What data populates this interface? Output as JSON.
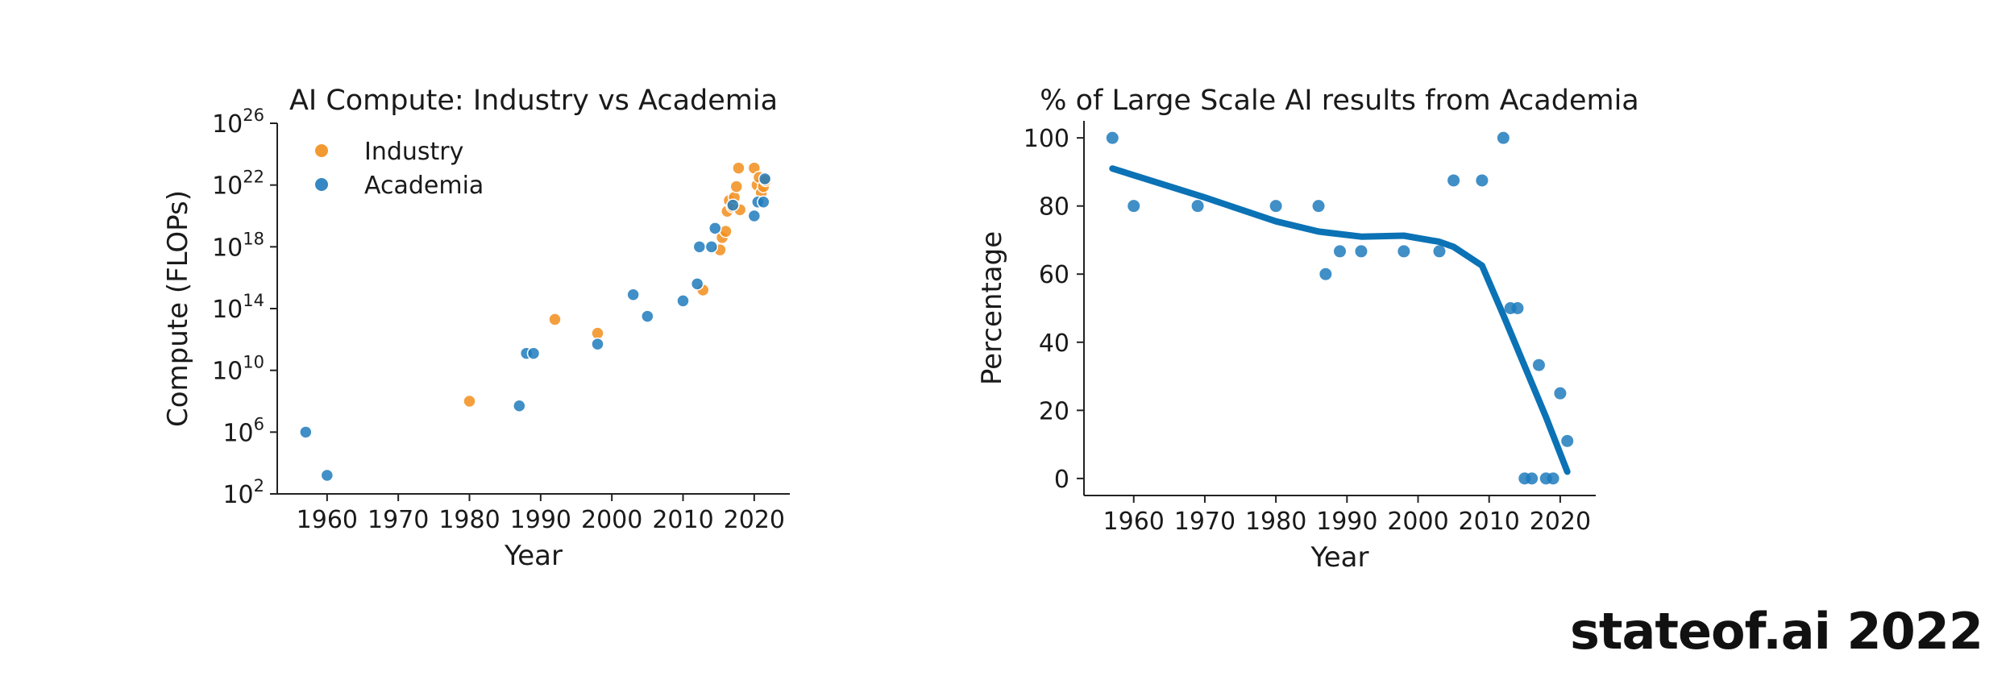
{
  "watermark": "stateof.ai 2022",
  "colors": {
    "industry": "#f28e1c",
    "academia": "#1f7bbd",
    "line": "#0b72b5",
    "text": "#1a1a1a"
  },
  "chart_data": [
    {
      "type": "scatter",
      "title": "AI Compute: Industry vs Academia",
      "xlabel": "Year",
      "ylabel": "Compute (FLOPs)",
      "xlim": [
        1953,
        2025
      ],
      "ylim": [
        2,
        26
      ],
      "yscale": "log10",
      "xticks": [
        1960,
        1970,
        1980,
        1990,
        2000,
        2010,
        2020
      ],
      "xtick_labels": [
        "1960",
        "1970",
        "1980",
        "1990",
        "2000",
        "2010",
        "2020"
      ],
      "yticks": [
        2,
        6,
        10,
        14,
        18,
        22,
        26
      ],
      "ytick_labels": [
        {
          "base": "10",
          "exp": "2"
        },
        {
          "base": "10",
          "exp": "6"
        },
        {
          "base": "10",
          "exp": "10"
        },
        {
          "base": "10",
          "exp": "14"
        },
        {
          "base": "10",
          "exp": "18"
        },
        {
          "base": "10",
          "exp": "22"
        },
        {
          "base": "10",
          "exp": "26"
        }
      ],
      "legend": {
        "position": "top-left",
        "entries": [
          "Industry",
          "Academia"
        ]
      },
      "grid": false,
      "series": [
        {
          "name": "Industry",
          "points": [
            [
              1980,
              8.0
            ],
            [
              1992,
              13.3
            ],
            [
              1998,
              12.4
            ],
            [
              2012.8,
              15.2
            ],
            [
              2015.2,
              17.8
            ],
            [
              2015.5,
              18.6
            ],
            [
              2016,
              19.0
            ],
            [
              2016.2,
              20.3
            ],
            [
              2016.5,
              21.0
            ],
            [
              2016.9,
              20.6
            ],
            [
              2017.2,
              21.2
            ],
            [
              2017.5,
              21.9
            ],
            [
              2017.8,
              23.1
            ],
            [
              2018,
              20.4
            ],
            [
              2020,
              23.1
            ],
            [
              2020.4,
              22.0
            ],
            [
              2020.7,
              22.5
            ],
            [
              2021,
              21.5
            ],
            [
              2021.3,
              21.9
            ],
            [
              2021.6,
              22.3
            ]
          ]
        },
        {
          "name": "Academia",
          "points": [
            [
              1957,
              6.0
            ],
            [
              1960,
              3.2
            ],
            [
              1987,
              7.7
            ],
            [
              1988,
              11.1
            ],
            [
              1989,
              11.1
            ],
            [
              1998,
              11.7
            ],
            [
              2003,
              14.9
            ],
            [
              2005,
              13.5
            ],
            [
              2010,
              14.5
            ],
            [
              2012,
              15.6
            ],
            [
              2012.3,
              18.0
            ],
            [
              2014,
              18.0
            ],
            [
              2014.5,
              19.2
            ],
            [
              2017,
              20.7
            ],
            [
              2020,
              20.0
            ],
            [
              2020.5,
              20.9
            ],
            [
              2021.3,
              20.9
            ],
            [
              2021.5,
              22.4
            ]
          ]
        }
      ]
    },
    {
      "type": "scatter",
      "title": "% of Large Scale AI results from Academia",
      "xlabel": "Year",
      "ylabel": "Percentage",
      "xlim": [
        1953,
        2025
      ],
      "ylim": [
        -5,
        105
      ],
      "xticks": [
        1960,
        1970,
        1980,
        1990,
        2000,
        2010,
        2020
      ],
      "xtick_labels": [
        "1960",
        "1970",
        "1980",
        "1990",
        "2000",
        "2010",
        "2020"
      ],
      "yticks": [
        0,
        20,
        40,
        60,
        80,
        100
      ],
      "ytick_labels": [
        "0",
        "20",
        "40",
        "60",
        "80",
        "100"
      ],
      "grid": false,
      "points": [
        [
          1957,
          100
        ],
        [
          1960,
          80
        ],
        [
          1969,
          80
        ],
        [
          1980,
          80
        ],
        [
          1986,
          80
        ],
        [
          1987,
          60
        ],
        [
          1989,
          66.7
        ],
        [
          1992,
          66.7
        ],
        [
          1998,
          66.7
        ],
        [
          2003,
          66.7
        ],
        [
          2005,
          87.5
        ],
        [
          2009,
          87.5
        ],
        [
          2012,
          100
        ],
        [
          2013,
          50
        ],
        [
          2014,
          50
        ],
        [
          2015,
          0
        ],
        [
          2016,
          0
        ],
        [
          2017,
          33.3
        ],
        [
          2018,
          0
        ],
        [
          2019,
          0
        ],
        [
          2020,
          25
        ],
        [
          2021,
          11
        ]
      ],
      "trend_line": [
        [
          1957,
          91
        ],
        [
          1970,
          82.5
        ],
        [
          1980,
          75.5
        ],
        [
          1986,
          72.5
        ],
        [
          1992,
          71
        ],
        [
          1998,
          71.3
        ],
        [
          2003,
          69.5
        ],
        [
          2005,
          68
        ],
        [
          2009,
          62.5
        ],
        [
          2012,
          48
        ],
        [
          2015,
          33
        ],
        [
          2018,
          18
        ],
        [
          2021,
          2
        ]
      ]
    }
  ]
}
